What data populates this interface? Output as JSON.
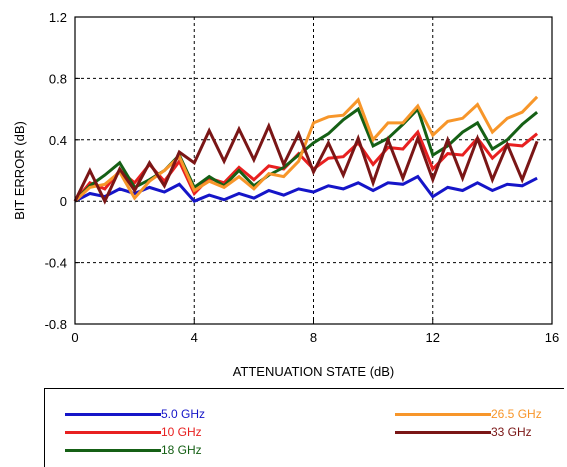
{
  "chart_data": {
    "type": "line",
    "xlabel": "ATTENUATION STATE (dB)",
    "ylabel": "BIT ERROR (dB)",
    "xlim": [
      0,
      16
    ],
    "ylim": [
      -0.8,
      1.2
    ],
    "xticks": [
      0,
      4,
      8,
      12,
      16
    ],
    "yticks": [
      1.2,
      0.8,
      0.4,
      0,
      -0.4,
      -0.8
    ],
    "ytick_labels": [
      "1.2",
      "0.8",
      "0.4",
      "0",
      "-0.4",
      "-0.8"
    ],
    "xtick_labels": [
      "0",
      "4",
      "8",
      "12",
      "16"
    ],
    "grid": "dashed",
    "legend_position": "bottom",
    "x": [
      0,
      0.5,
      1,
      1.5,
      2,
      2.5,
      3,
      3.5,
      4,
      4.5,
      5,
      5.5,
      6,
      6.5,
      7,
      7.5,
      8,
      8.5,
      9,
      9.5,
      10,
      10.5,
      11,
      11.5,
      12,
      12.5,
      13,
      13.5,
      14,
      14.5,
      15,
      15.5
    ],
    "series": [
      {
        "name": "5.0 GHz",
        "color": "#1515c8",
        "values": [
          0.0,
          0.05,
          0.03,
          0.08,
          0.05,
          0.09,
          0.06,
          0.11,
          0.0,
          0.04,
          0.01,
          0.05,
          0.02,
          0.07,
          0.04,
          0.08,
          0.06,
          0.1,
          0.08,
          0.12,
          0.07,
          0.12,
          0.11,
          0.16,
          0.03,
          0.09,
          0.07,
          0.12,
          0.07,
          0.11,
          0.1,
          0.15
        ]
      },
      {
        "name": "10 GHz",
        "color": "#e82020",
        "values": [
          0.0,
          0.12,
          0.08,
          0.2,
          0.12,
          0.24,
          0.13,
          0.26,
          0.05,
          0.15,
          0.12,
          0.22,
          0.14,
          0.23,
          0.21,
          0.31,
          0.21,
          0.28,
          0.29,
          0.38,
          0.24,
          0.35,
          0.34,
          0.45,
          0.21,
          0.31,
          0.3,
          0.41,
          0.28,
          0.37,
          0.36,
          0.44
        ]
      },
      {
        "name": "18 GHz",
        "color": "#156015",
        "values": [
          0.0,
          0.1,
          0.17,
          0.25,
          0.09,
          0.14,
          0.2,
          0.3,
          0.09,
          0.16,
          0.1,
          0.2,
          0.1,
          0.17,
          0.22,
          0.3,
          0.38,
          0.44,
          0.53,
          0.6,
          0.36,
          0.41,
          0.5,
          0.6,
          0.3,
          0.36,
          0.45,
          0.51,
          0.34,
          0.4,
          0.5,
          0.58
        ]
      },
      {
        "name": "26.5 GHz",
        "color": "#f7962a",
        "values": [
          0.0,
          0.09,
          0.11,
          0.19,
          0.02,
          0.13,
          0.2,
          0.29,
          0.07,
          0.13,
          0.09,
          0.16,
          0.08,
          0.18,
          0.16,
          0.26,
          0.51,
          0.55,
          0.56,
          0.66,
          0.4,
          0.51,
          0.51,
          0.62,
          0.43,
          0.52,
          0.54,
          0.63,
          0.45,
          0.54,
          0.58,
          0.68
        ]
      },
      {
        "name": "33 GHz",
        "color": "#7a1616",
        "values": [
          0.0,
          0.2,
          0.0,
          0.21,
          0.07,
          0.25,
          0.1,
          0.32,
          0.25,
          0.46,
          0.26,
          0.47,
          0.27,
          0.49,
          0.24,
          0.44,
          0.19,
          0.38,
          0.17,
          0.41,
          0.12,
          0.4,
          0.15,
          0.41,
          0.14,
          0.4,
          0.15,
          0.41,
          0.14,
          0.37,
          0.14,
          0.39
        ]
      }
    ]
  }
}
